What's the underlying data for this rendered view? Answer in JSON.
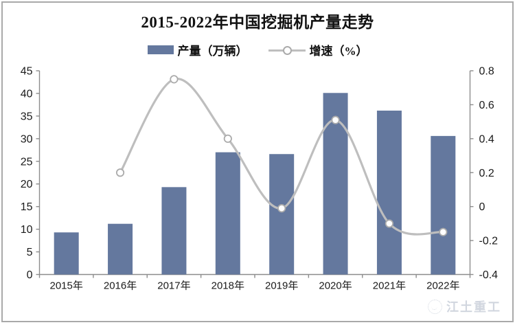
{
  "frame": {
    "border_color": "#a9a9a9",
    "background": "#ffffff"
  },
  "chart_data": {
    "type": "bar",
    "title": "2015-2022年中国挖掘机产量走势",
    "categories": [
      "2015年",
      "2016年",
      "2017年",
      "2018年",
      "2019年",
      "2020年",
      "2021年",
      "2022年"
    ],
    "series": [
      {
        "name": "产量（万辆）",
        "type": "bar",
        "axis": "left",
        "color": "#64789E",
        "values": [
          9.3,
          11.2,
          19.3,
          27.0,
          26.6,
          40.1,
          36.2,
          30.6
        ]
      },
      {
        "name": "增速（%）",
        "type": "line",
        "axis": "right",
        "color": "#BEBEBE",
        "marker_fill": "#FFFFFF",
        "marker_stroke": "#ABABAB",
        "values": [
          null,
          0.2,
          0.75,
          0.4,
          -0.01,
          0.51,
          -0.1,
          -0.15
        ]
      }
    ],
    "left_axis": {
      "min": 0,
      "max": 45,
      "step": 5,
      "ticks": [
        "45",
        "40",
        "35",
        "30",
        "25",
        "20",
        "15",
        "10",
        "5",
        "0"
      ]
    },
    "right_axis": {
      "min": -0.4,
      "max": 0.8,
      "step": 0.2,
      "ticks": [
        "0.8",
        "0.6",
        "0.4",
        "0.2",
        "0",
        "-0.2",
        "-0.4"
      ]
    },
    "axis_color": "#8C8C8C",
    "tick_label_color": "#1a1a1a",
    "grid": false,
    "legend_position": "top"
  },
  "watermark": {
    "text": "江土重工"
  }
}
